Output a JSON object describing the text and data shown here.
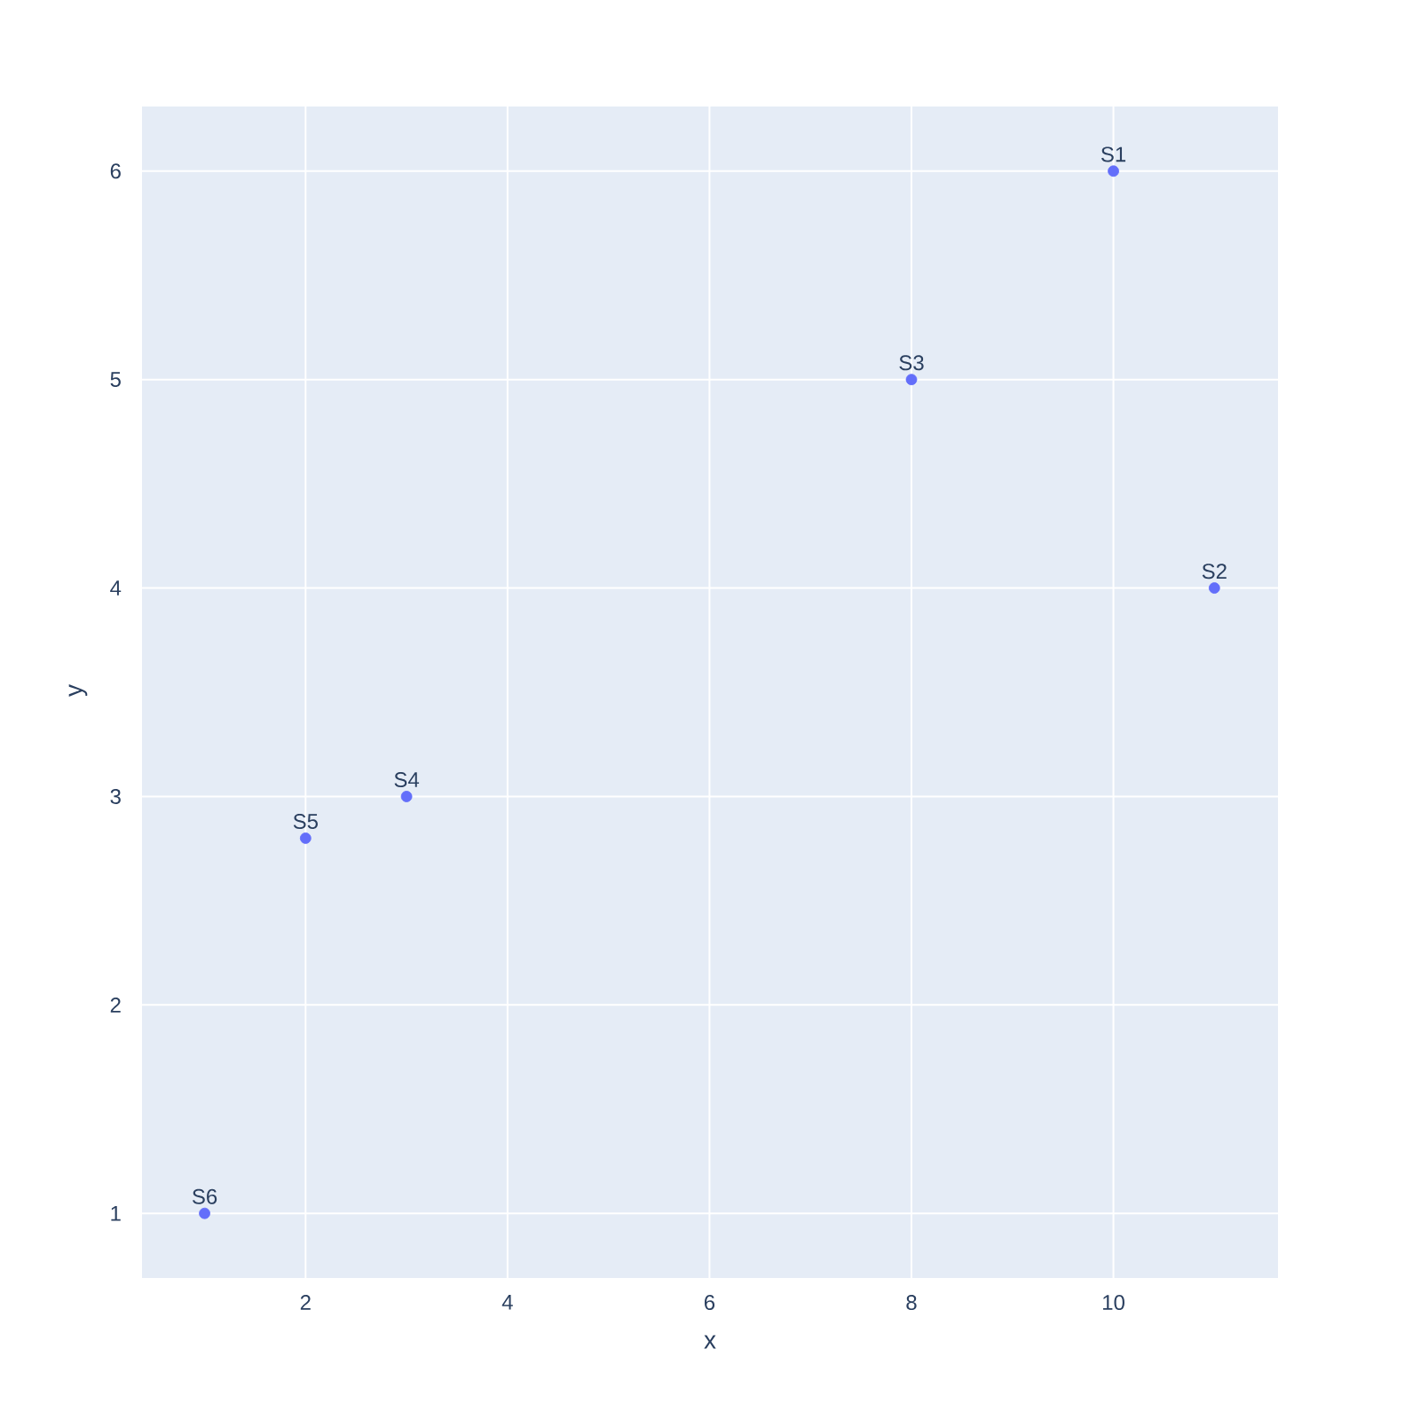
{
  "chart_data": {
    "type": "scatter",
    "xlabel": "x",
    "ylabel": "y",
    "x": [
      10,
      11,
      8,
      3,
      2,
      1
    ],
    "values": [
      6,
      4,
      5,
      3,
      2.8,
      1
    ],
    "color": "#636efa",
    "marker": "circle",
    "xlim": [
      0.38,
      11.63
    ],
    "ylim": [
      0.69,
      6.31
    ],
    "xticks": [
      2,
      4,
      6,
      8,
      10
    ],
    "yticks": [
      1,
      2,
      3,
      4,
      5,
      6
    ],
    "grid": true,
    "annotations": [
      {
        "text": "S1",
        "x": 10,
        "y": 6
      },
      {
        "text": "S2",
        "x": 11,
        "y": 4
      },
      {
        "text": "S3",
        "x": 8,
        "y": 5
      },
      {
        "text": "S4",
        "x": 3,
        "y": 3
      },
      {
        "text": "S5",
        "x": 2,
        "y": 2.8
      },
      {
        "text": "S6",
        "x": 1,
        "y": 1
      }
    ]
  }
}
